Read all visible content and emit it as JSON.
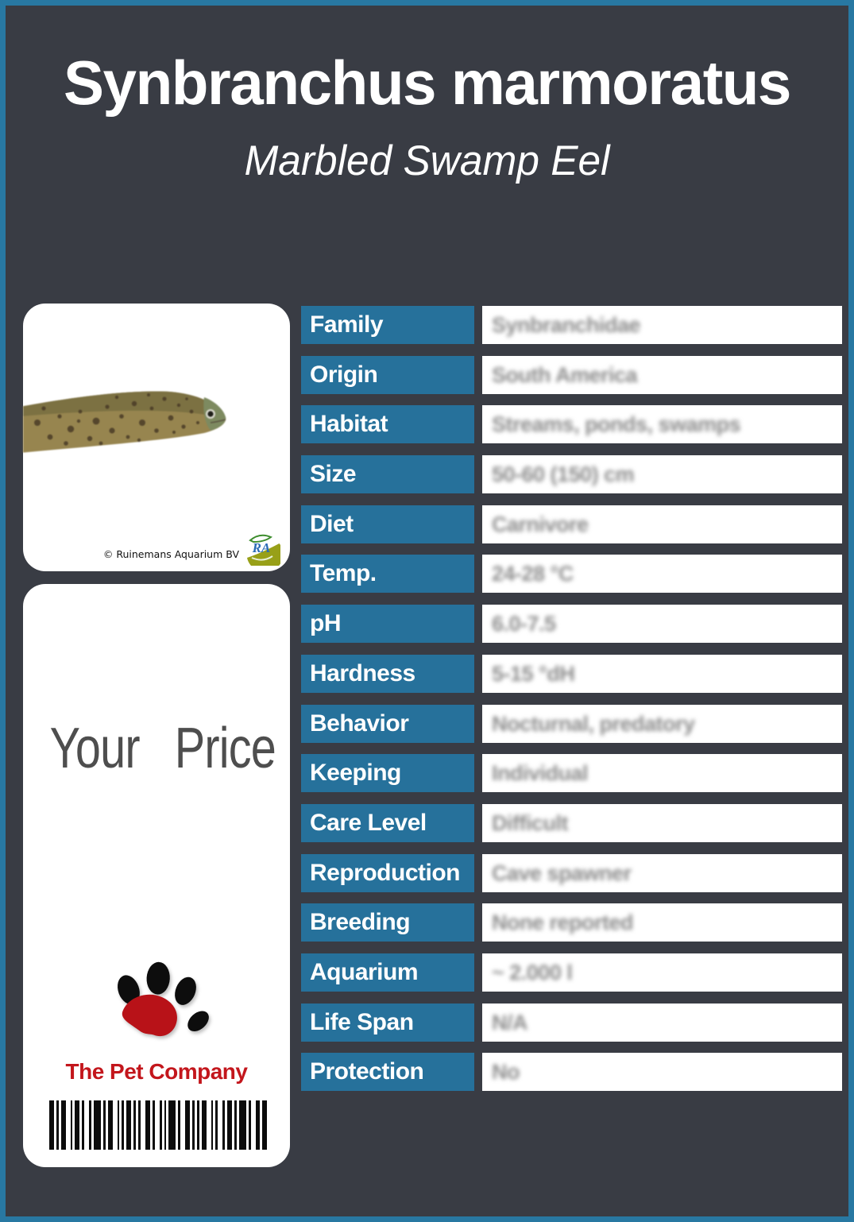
{
  "page": {
    "background_color": "#393c44",
    "border_color": "#2878a2"
  },
  "header": {
    "title": "Synbranchus marmoratus",
    "subtitle": "Marbled Swamp Eel"
  },
  "photo_card": {
    "copyright": "© Ruinemans Aquarium BV",
    "logo_text": "RA"
  },
  "price_card": {
    "price_label": "Your Price",
    "company_name": "The Pet Company"
  },
  "colors": {
    "label_cell": "#26719b",
    "value_text": "#8b8b8b",
    "company_red": "#c3161c",
    "paw_pad_red": "#b81218",
    "paw_toe_black": "#0d0d0d"
  },
  "table": {
    "rows": [
      {
        "label": "Family",
        "value": "Synbranchidae"
      },
      {
        "label": "Origin",
        "value": "South America"
      },
      {
        "label": "Habitat",
        "value": "Streams, ponds, swamps"
      },
      {
        "label": "Size",
        "value": "50-60 (150) cm"
      },
      {
        "label": "Diet",
        "value": "Carnivore"
      },
      {
        "label": "Temp.",
        "value": "24-28 °C"
      },
      {
        "label": "pH",
        "value": "6.0-7.5"
      },
      {
        "label": "Hardness",
        "value": "5-15 °dH"
      },
      {
        "label": "Behavior",
        "value": "Nocturnal, predatory"
      },
      {
        "label": "Keeping",
        "value": "Individual"
      },
      {
        "label": "Care Level",
        "value": "Difficult"
      },
      {
        "label": "Reproduction",
        "value": "Cave spawner"
      },
      {
        "label": "Breeding",
        "value": "None reported"
      },
      {
        "label": "Aquarium",
        "value": "~ 2.000 l"
      },
      {
        "label": "Life Span",
        "value": "N/A"
      },
      {
        "label": "Protection",
        "value": "No"
      }
    ]
  },
  "barcode": {
    "stripes": [
      2,
      1,
      1,
      1,
      2,
      2,
      1,
      1,
      2,
      1,
      1,
      2,
      1,
      1,
      3,
      1,
      1,
      1,
      2,
      2,
      1,
      1,
      1,
      1,
      2,
      1,
      1,
      1,
      1,
      2,
      2,
      1,
      1,
      2,
      1,
      1,
      1,
      1,
      3,
      1,
      1,
      2,
      2,
      1,
      1,
      1,
      1,
      1,
      2,
      2,
      1,
      1,
      1,
      2,
      1,
      1,
      2,
      1,
      1,
      1,
      3,
      1,
      1,
      2,
      2,
      1,
      2
    ]
  }
}
